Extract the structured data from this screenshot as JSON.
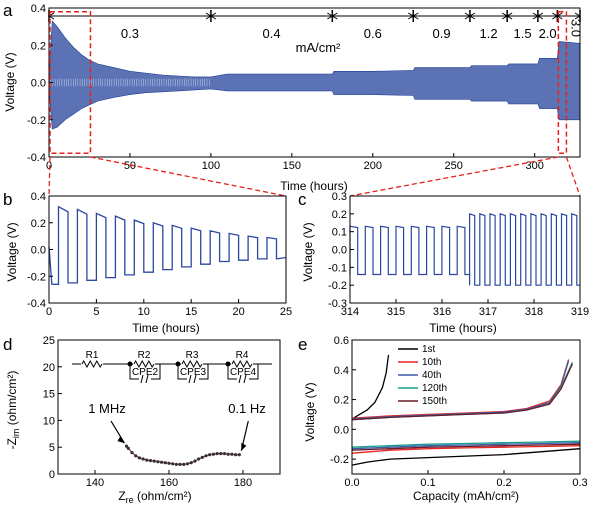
{
  "panel_labels": {
    "a": "a",
    "b": "b",
    "c": "c",
    "d": "d",
    "e": "e"
  },
  "chart_data": [
    {
      "panel": "a",
      "type": "line",
      "xlabel": "Time (hours)",
      "ylabel": "Voltage (V)",
      "xlim": [
        0,
        328
      ],
      "ylim": [
        -0.4,
        0.4
      ],
      "xticks": [
        "0",
        "50",
        "100",
        "150",
        "200",
        "250",
        "300"
      ],
      "yticks": [
        "-0.4",
        "-0.2",
        "0.0",
        "0.2",
        "0.4"
      ],
      "unit_label": "mA/cm²",
      "current_segments": [
        {
          "label": "0.3",
          "start": 0,
          "end": 100
        },
        {
          "label": "0.4",
          "start": 100,
          "end": 175
        },
        {
          "label": "0.6",
          "start": 175,
          "end": 225
        },
        {
          "label": "0.9",
          "start": 225,
          "end": 260
        },
        {
          "label": "1.2",
          "start": 260,
          "end": 283
        },
        {
          "label": "1.5",
          "start": 283,
          "end": 302
        },
        {
          "label": "2.0",
          "start": 302,
          "end": 314
        },
        {
          "label": "3.0",
          "start": 314,
          "end": 328
        }
      ],
      "envelope": {
        "x": [
          0,
          2,
          5,
          10,
          15,
          20,
          25,
          30,
          40,
          50,
          60,
          70,
          80,
          90,
          100,
          110,
          130,
          150,
          175,
          176,
          200,
          225,
          226,
          245,
          260,
          261,
          283,
          284,
          302,
          303,
          314,
          315,
          328
        ],
        "upper": [
          0.03,
          0.33,
          0.3,
          0.24,
          0.19,
          0.15,
          0.12,
          0.1,
          0.08,
          0.06,
          0.05,
          0.04,
          0.035,
          0.03,
          0.03,
          0.045,
          0.045,
          0.045,
          0.045,
          0.06,
          0.06,
          0.065,
          0.08,
          0.08,
          0.08,
          0.09,
          0.09,
          0.1,
          0.1,
          0.13,
          0.13,
          0.22,
          0.21
        ],
        "lower": [
          -0.03,
          -0.25,
          -0.24,
          -0.2,
          -0.17,
          -0.14,
          -0.12,
          -0.1,
          -0.08,
          -0.065,
          -0.055,
          -0.05,
          -0.045,
          -0.04,
          -0.035,
          -0.045,
          -0.045,
          -0.045,
          -0.045,
          -0.065,
          -0.065,
          -0.07,
          -0.09,
          -0.09,
          -0.09,
          -0.1,
          -0.1,
          -0.115,
          -0.115,
          -0.14,
          -0.14,
          -0.2,
          -0.2
        ]
      },
      "zoom_windows": [
        [
          0,
          25
        ],
        [
          314,
          319
        ]
      ]
    },
    {
      "panel": "b",
      "type": "line",
      "xlabel": "Time (hours)",
      "ylabel": "Voltage (V)",
      "xlim": [
        0,
        25
      ],
      "ylim": [
        -0.4,
        0.4
      ],
      "xticks": [
        "0",
        "5",
        "10",
        "15",
        "20",
        "25"
      ],
      "yticks": [
        "-0.4",
        "-0.2",
        "0.0",
        "0.2",
        "0.4"
      ],
      "cycles": {
        "period_hours": 2,
        "start_hours": 1,
        "high": [
          0.32,
          0.3,
          0.27,
          0.25,
          0.22,
          0.2,
          0.18,
          0.16,
          0.14,
          0.12,
          0.1,
          0.09
        ],
        "low": [
          -0.26,
          -0.25,
          -0.23,
          -0.21,
          -0.19,
          -0.17,
          -0.15,
          -0.13,
          -0.11,
          -0.09,
          -0.08,
          -0.07
        ]
      }
    },
    {
      "panel": "c",
      "type": "line",
      "xlabel": "Time (hours)",
      "ylabel": "Voltage (V)",
      "xlim": [
        314,
        319
      ],
      "ylim": [
        -0.3,
        0.3
      ],
      "xticks": [
        "314",
        "315",
        "316",
        "317",
        "318",
        "319"
      ],
      "yticks": [
        "-0.3",
        "-0.2",
        "-0.1",
        "0.0",
        "0.1",
        "0.2",
        "0.3"
      ],
      "segments": [
        {
          "start": 314,
          "end": 316.6,
          "period_hours": 0.333,
          "high": 0.13,
          "low": -0.14
        },
        {
          "start": 316.6,
          "end": 319,
          "period_hours": 0.222,
          "high": 0.2,
          "low": -0.2
        }
      ]
    },
    {
      "panel": "d",
      "type": "scatter",
      "xlabel": "Z",
      "xlabel_sub": "re",
      "xlabel_unit": " (ohm/cm²)",
      "ylabel": "-Z",
      "ylabel_sub": "im",
      "ylabel_unit": " (ohm/cm²)",
      "xlim": [
        130,
        190
      ],
      "ylim": [
        0,
        25
      ],
      "xticks": [
        "140",
        "160",
        "180"
      ],
      "yticks": [
        "0",
        "5",
        "10",
        "15",
        "20",
        "25"
      ],
      "x": [
        148.5,
        149,
        150,
        151,
        152,
        153,
        154,
        155,
        156,
        157,
        158,
        159,
        160,
        161,
        162,
        163,
        164,
        165,
        166,
        167,
        168,
        169,
        170,
        171,
        172,
        173,
        174,
        175,
        176,
        177,
        178,
        179
      ],
      "y": [
        5.2,
        4.8,
        4.0,
        3.4,
        3.0,
        2.8,
        2.6,
        2.5,
        2.4,
        2.3,
        2.2,
        2.1,
        2.0,
        1.9,
        1.8,
        1.8,
        1.8,
        1.9,
        2.1,
        2.4,
        2.8,
        3.1,
        3.4,
        3.6,
        3.7,
        3.8,
        3.8,
        3.8,
        3.7,
        3.7,
        3.6,
        3.6
      ],
      "annotations": [
        {
          "text": "1 MHz",
          "at": [
            148.5,
            5.2
          ]
        },
        {
          "text": "0.1 Hz",
          "at": [
            179,
            3.6
          ]
        }
      ],
      "circuit": {
        "resistors": [
          "R1",
          "R2",
          "R3",
          "R4"
        ],
        "cpes": [
          "CPE2",
          "CPE3",
          "CPE4"
        ]
      }
    },
    {
      "panel": "e",
      "type": "line",
      "xlabel": "Capacity (mAh/cm²)",
      "ylabel": "Voltage (V)",
      "xlim": [
        0,
        0.3
      ],
      "ylim": [
        -0.3,
        0.6
      ],
      "xticks": [
        "0.0",
        "0.1",
        "0.2",
        "0.3"
      ],
      "yticks": [
        "-0.2",
        "0.0",
        "0.2",
        "0.4",
        "0.6"
      ],
      "legend_position": "top-right",
      "series": [
        {
          "name": "1st",
          "color": "#000000",
          "charge": {
            "x": [
              0,
              0.01,
              0.02,
              0.03,
              0.04,
              0.045,
              0.048
            ],
            "y": [
              0.07,
              0.1,
              0.13,
              0.18,
              0.28,
              0.38,
              0.5
            ]
          },
          "discharge": {
            "x": [
              0,
              0.02,
              0.05,
              0.1,
              0.15,
              0.2,
              0.25,
              0.3
            ],
            "y": [
              -0.24,
              -0.22,
              -0.2,
              -0.19,
              -0.18,
              -0.17,
              -0.15,
              -0.13
            ]
          }
        },
        {
          "name": "10th",
          "color": "#e8251f",
          "charge": {
            "x": [
              0,
              0.05,
              0.1,
              0.15,
              0.2,
              0.23,
              0.26,
              0.275,
              0.285
            ],
            "y": [
              0.075,
              0.09,
              0.1,
              0.11,
              0.12,
              0.14,
              0.19,
              0.3,
              0.47
            ]
          },
          "discharge": {
            "x": [
              0,
              0.05,
              0.1,
              0.15,
              0.2,
              0.25,
              0.3
            ],
            "y": [
              -0.16,
              -0.14,
              -0.13,
              -0.125,
              -0.12,
              -0.115,
              -0.11
            ]
          }
        },
        {
          "name": "40th",
          "color": "#3b5ba9",
          "charge": {
            "x": [
              0,
              0.05,
              0.1,
              0.15,
              0.2,
              0.23,
              0.26,
              0.275,
              0.285
            ],
            "y": [
              0.07,
              0.085,
              0.095,
              0.105,
              0.115,
              0.135,
              0.18,
              0.29,
              0.46
            ]
          },
          "discharge": {
            "x": [
              0,
              0.05,
              0.1,
              0.15,
              0.2,
              0.25,
              0.3
            ],
            "y": [
              -0.13,
              -0.12,
              -0.11,
              -0.105,
              -0.1,
              -0.095,
              -0.09
            ]
          }
        },
        {
          "name": "120th",
          "color": "#169c8c",
          "charge": {
            "x": [
              0,
              0.05,
              0.1,
              0.15,
              0.2,
              0.23,
              0.26,
              0.275,
              0.29
            ],
            "y": [
              0.065,
              0.08,
              0.09,
              0.1,
              0.11,
              0.13,
              0.17,
              0.28,
              0.45
            ]
          },
          "discharge": {
            "x": [
              0,
              0.05,
              0.1,
              0.15,
              0.2,
              0.25,
              0.3
            ],
            "y": [
              -0.12,
              -0.11,
              -0.1,
              -0.095,
              -0.09,
              -0.085,
              -0.08
            ]
          }
        },
        {
          "name": "150th",
          "color": "#6b1a2c",
          "charge": {
            "x": [
              0,
              0.05,
              0.1,
              0.15,
              0.2,
              0.23,
              0.26,
              0.275,
              0.29
            ],
            "y": [
              0.065,
              0.08,
              0.09,
              0.1,
              0.11,
              0.13,
              0.17,
              0.27,
              0.44
            ]
          },
          "discharge": {
            "x": [
              0,
              0.05,
              0.1,
              0.15,
              0.2,
              0.25,
              0.3
            ],
            "y": [
              -0.14,
              -0.13,
              -0.12,
              -0.115,
              -0.11,
              -0.105,
              -0.1
            ]
          }
        }
      ]
    }
  ]
}
